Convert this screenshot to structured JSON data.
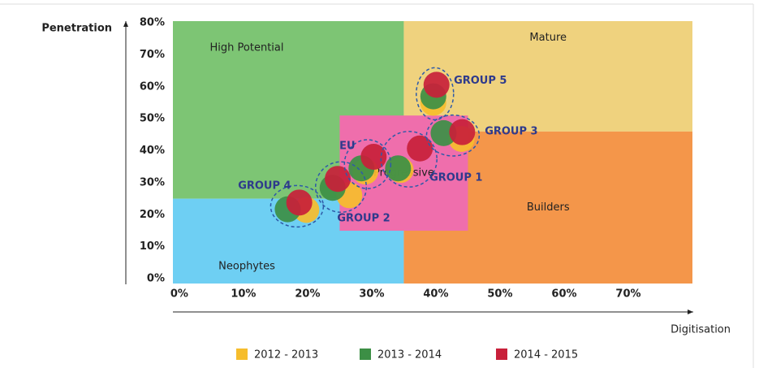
{
  "chart_data": {
    "type": "scatter",
    "y_label": "Penetration",
    "x_label": "Digitisation",
    "xlim": [
      -1,
      80
    ],
    "ylim": [
      -1.5,
      80.5
    ],
    "xticks": [
      {
        "value": 0,
        "label": "0%"
      },
      {
        "value": 10,
        "label": "10%"
      },
      {
        "value": 20,
        "label": "20%"
      },
      {
        "value": 30,
        "label": "30%"
      },
      {
        "value": 40,
        "label": "40%"
      },
      {
        "value": 50,
        "label": "50%"
      },
      {
        "value": 60,
        "label": "60%"
      },
      {
        "value": 70,
        "label": "70%"
      }
    ],
    "yticks": [
      {
        "value": 0,
        "label": "0%"
      },
      {
        "value": 10,
        "label": "10%"
      },
      {
        "value": 20,
        "label": "20%"
      },
      {
        "value": 30,
        "label": "30%"
      },
      {
        "value": 40,
        "label": "40%"
      },
      {
        "value": 50,
        "label": "50%"
      },
      {
        "value": 60,
        "label": "60%"
      },
      {
        "value": 70,
        "label": "70%"
      },
      {
        "value": 80,
        "label": "80%"
      }
    ],
    "regions": [
      {
        "name": "High Potential",
        "color": "#7dc574",
        "x": [
          -1,
          35
        ],
        "y": [
          25,
          80.5
        ]
      },
      {
        "name": "Neophytes",
        "color": "#6ecff3",
        "x": [
          -1,
          35
        ],
        "y": [
          -1.5,
          25
        ]
      },
      {
        "name": "Mature",
        "color": "#efd27e",
        "x": [
          35,
          80
        ],
        "y": [
          46,
          80.5
        ]
      },
      {
        "name": "Builders",
        "color": "#f4964a",
        "x": [
          35,
          80
        ],
        "y": [
          -1.5,
          46
        ]
      },
      {
        "name": "Progressive",
        "color": "#ef6eac",
        "x": [
          25,
          45
        ],
        "y": [
          15,
          51
        ]
      }
    ],
    "groups": [
      "GROUP 4",
      "GROUP 2",
      "EU",
      "GROUP 1",
      "GROUP 3",
      "GROUP 5"
    ],
    "series": [
      {
        "name": "2012 - 2013",
        "color": "#f6bd2c",
        "x": [
          19.8,
          26.5,
          29,
          34.5,
          44,
          39.6
        ],
        "values": [
          21.5,
          26.1,
          33.5,
          34,
          43.7,
          55
        ]
      },
      {
        "name": "2013 - 2014",
        "color": "#3c8f45",
        "x": [
          16.9,
          23.9,
          28.4,
          34.1,
          41.2,
          39.6
        ],
        "values": [
          21.7,
          28.4,
          34.5,
          34.5,
          45.5,
          57
        ]
      },
      {
        "name": "2014 - 2015",
        "color": "#c8203a",
        "x": [
          18.7,
          24.7,
          30.3,
          37.5,
          44.1,
          40.1
        ],
        "values": [
          23.8,
          31.2,
          38.1,
          40.7,
          45.8,
          60.6
        ]
      }
    ]
  }
}
